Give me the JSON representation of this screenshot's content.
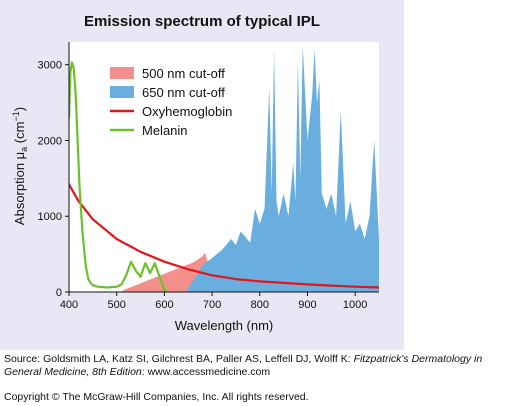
{
  "chart_data": {
    "type": "area",
    "title": "Emission spectrum of typical IPL",
    "xlabel": "Wavelength (nm)",
    "ylabel": {
      "pre": "Absorption μ",
      "sub": "a",
      "mid": " (cm",
      "sup": "−1",
      "post": ")"
    },
    "xlim": [
      400,
      1050
    ],
    "ylim": [
      0,
      3300
    ],
    "xticks": [
      400,
      500,
      600,
      700,
      800,
      900,
      1000
    ],
    "yticks": [
      0,
      1000,
      2000,
      3000
    ],
    "grid": false,
    "legend_position": "top-center",
    "series": [
      {
        "name": "500 nm cut-off",
        "kind": "area",
        "color": "#f4908c",
        "x": [
          500,
          510,
          520,
          540,
          560,
          580,
          600,
          620,
          640,
          660,
          670,
          680,
          685,
          690,
          700
        ],
        "y": [
          0,
          10,
          40,
          90,
          140,
          190,
          240,
          290,
          340,
          390,
          430,
          470,
          520,
          420,
          330
        ]
      },
      {
        "name": "650 nm cut-off",
        "kind": "area",
        "color": "#6aaedf",
        "x": [
          645,
          660,
          680,
          700,
          720,
          740,
          750,
          760,
          780,
          790,
          800,
          810,
          820,
          825,
          830,
          835,
          840,
          850,
          860,
          870,
          875,
          880,
          885,
          890,
          900,
          910,
          915,
          920,
          925,
          930,
          940,
          950,
          960,
          970,
          980,
          990,
          1000,
          1010,
          1020,
          1030,
          1040,
          1050
        ],
        "y": [
          0,
          150,
          350,
          450,
          550,
          700,
          620,
          800,
          650,
          1100,
          900,
          1100,
          2700,
          1300,
          3200,
          1200,
          1000,
          1300,
          1000,
          1700,
          1200,
          3050,
          1500,
          3250,
          2000,
          2600,
          3200,
          2500,
          2800,
          1300,
          1100,
          1300,
          1000,
          2400,
          900,
          1200,
          800,
          900,
          700,
          1000,
          2000,
          700
        ]
      },
      {
        "name": "Oxyhemoglobin",
        "kind": "line",
        "color": "#e0161b",
        "x": [
          400,
          420,
          450,
          500,
          550,
          600,
          650,
          700,
          750,
          800,
          850,
          900,
          950,
          1000,
          1050
        ],
        "y": [
          1420,
          1200,
          960,
          700,
          530,
          400,
          300,
          220,
          170,
          140,
          120,
          100,
          85,
          70,
          60
        ]
      },
      {
        "name": "Melanin",
        "kind": "line",
        "color": "#6cc12b",
        "x": [
          400,
          403,
          406,
          410,
          414,
          418,
          422,
          428,
          435,
          440,
          445,
          450,
          460,
          480,
          500,
          510,
          520,
          530,
          540,
          550,
          560,
          570,
          580,
          590,
          600,
          605
        ],
        "y": [
          2300,
          2900,
          3030,
          2950,
          2600,
          2000,
          1400,
          800,
          350,
          180,
          120,
          90,
          70,
          60,
          70,
          100,
          220,
          400,
          280,
          200,
          380,
          250,
          380,
          200,
          30,
          0
        ]
      }
    ]
  },
  "source": {
    "prefix": "Source: Goldsmith LA, Katz SI, Gilchrest BA, Paller AS, Leffell DJ, Wolff K: ",
    "title": "Fitzpatrick's Dermatology in General Medicine, 8th Edition",
    "suffix": ": www.accessmedicine.com"
  },
  "copyright": "Copyright © The McGraw-Hill Companies, Inc. All rights reserved."
}
